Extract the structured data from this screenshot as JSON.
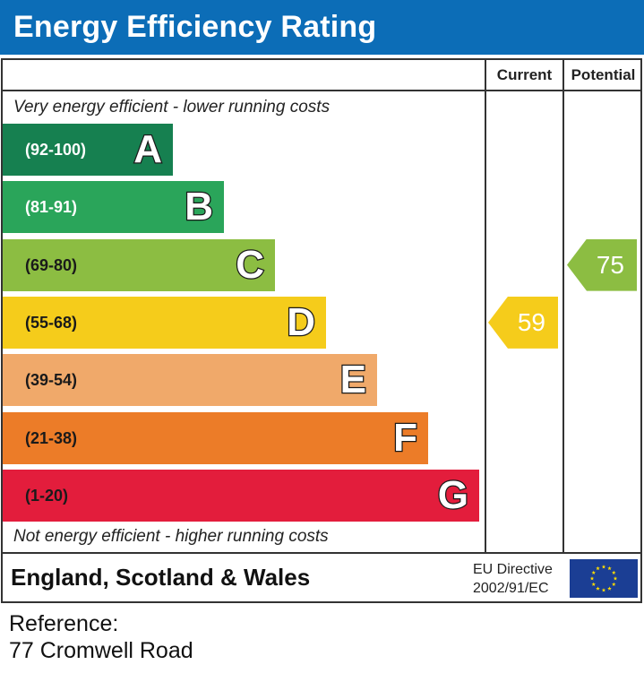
{
  "title": "Energy Efficiency Rating",
  "columns": {
    "current": "Current",
    "potential": "Potential"
  },
  "top_caption": "Very energy efficient - lower running costs",
  "bottom_caption": "Not energy efficient - higher running costs",
  "chart_data": {
    "type": "bar",
    "categories": [
      "A",
      "B",
      "C",
      "D",
      "E",
      "F",
      "G"
    ],
    "bands": [
      {
        "letter": "A",
        "range": "(92-100)",
        "color": "#168050",
        "range_color": "#ffffff"
      },
      {
        "letter": "B",
        "range": "(81-91)",
        "color": "#2aa55a",
        "range_color": "#ffffff"
      },
      {
        "letter": "C",
        "range": "(69-80)",
        "color": "#8cbd42",
        "range_color": "#1a1a1a"
      },
      {
        "letter": "D",
        "range": "(55-68)",
        "color": "#f5cc1b",
        "range_color": "#1a1a1a"
      },
      {
        "letter": "E",
        "range": "(39-54)",
        "color": "#f0a96a",
        "range_color": "#1a1a1a"
      },
      {
        "letter": "F",
        "range": "(21-38)",
        "color": "#ec7c28",
        "range_color": "#1a1a1a"
      },
      {
        "letter": "G",
        "range": "(1-20)",
        "color": "#e31d3c",
        "range_color": "#1a1a1a"
      }
    ],
    "current": {
      "value": 59,
      "label": "59",
      "band": "D",
      "color": "#f5cc1b"
    },
    "potential": {
      "value": 75,
      "label": "75",
      "band": "C",
      "color": "#8cbd42"
    }
  },
  "footer": {
    "region": "England, Scotland & Wales",
    "directive_line1": "EU Directive",
    "directive_line2": "2002/91/EC",
    "flag_icon": "eu-flag-icon"
  },
  "reference": {
    "label": "Reference:",
    "address": "77 Cromwell Road"
  }
}
